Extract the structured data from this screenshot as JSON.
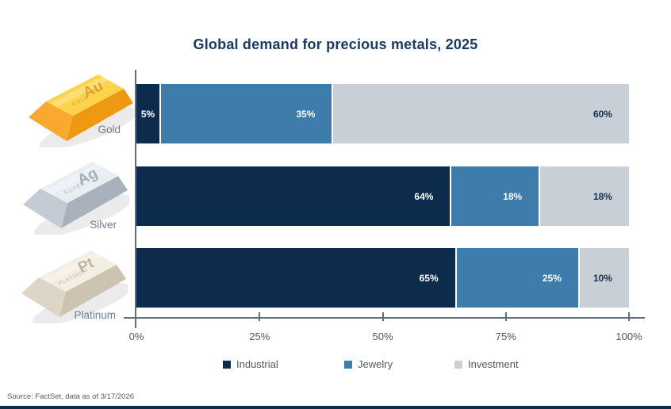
{
  "title": "Global demand for precious metals, 2025",
  "source_note": "Source: FactSet, data as of 3/17/2026",
  "chart_data": {
    "type": "bar",
    "orientation": "horizontal",
    "stacked": true,
    "title": "Global demand for precious metals, 2025",
    "categories": [
      "Gold",
      "Silver",
      "Platinum"
    ],
    "series": [
      {
        "name": "Industrial",
        "color": "#0d2c4c",
        "values": [
          5,
          64,
          65
        ]
      },
      {
        "name": "Jewelry",
        "color": "#3e7cac",
        "values": [
          35,
          18,
          25
        ]
      },
      {
        "name": "Investment",
        "color": "#c9cfd7",
        "values": [
          60,
          18,
          10
        ]
      }
    ],
    "data_labels": [
      [
        "5%",
        "35%",
        "60%"
      ],
      [
        "64%",
        "18%",
        "18%"
      ],
      [
        "65%",
        "25%",
        "10%"
      ]
    ],
    "x_axis": {
      "min": 0,
      "max": 100,
      "tick_labels": [
        "0%",
        "25%",
        "50%",
        "75%",
        "100%"
      ]
    },
    "legend": [
      "Industrial",
      "Jewelry",
      "Investment"
    ],
    "legend_position": "bottom",
    "grid": false
  },
  "ingots": [
    {
      "label": "Gold",
      "symbol": "Au",
      "stamp": "GOLD",
      "colors": {
        "top": "#fcd44b",
        "front": "#f8a92e",
        "side": "#ef9812",
        "stamp_text": "#dd9626"
      }
    },
    {
      "label": "Silver",
      "symbol": "Ag",
      "stamp": "SILVER",
      "colors": {
        "top": "#eaeef3",
        "front": "#c3cbd4",
        "side": "#a9b1bd",
        "stamp_text": "#9aa4b1"
      }
    },
    {
      "label": "Platinum",
      "symbol": "Pt",
      "stamp": "PLATINUM",
      "colors": {
        "top": "#f3eee3",
        "front": "#ddd6c6",
        "side": "#ccc3b1",
        "stamp_text": "#b5aa91"
      }
    }
  ],
  "styles": {
    "title_color": "#1b3a63",
    "axis_color": "#5f6e7d",
    "tick_label_color": "#4a5560",
    "legend_text_color": "#54585e",
    "category_label_color": "#6f7d8c",
    "label_on_dark": "#ffffff",
    "label_on_light": "#13314f",
    "source_color": "#595959",
    "bottom_bar_color": "#0d2c4c"
  }
}
